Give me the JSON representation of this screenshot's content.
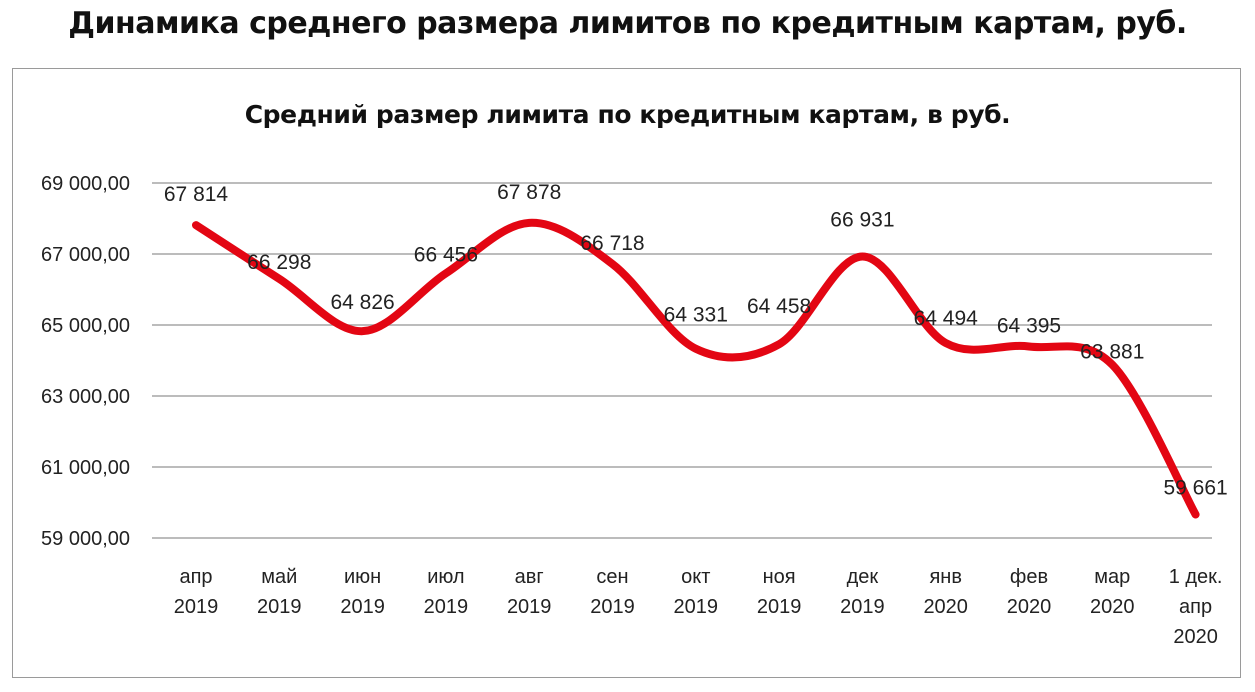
{
  "page_title": "Динамика среднего размера лимитов по кредитным картам, руб.",
  "chart_data": {
    "type": "line",
    "title": "Средний размер лимита по кредитным картам, в руб.",
    "xlabel": "",
    "ylabel": "",
    "categories": [
      [
        "апр",
        "2019"
      ],
      [
        "май",
        "2019"
      ],
      [
        "июн",
        "2019"
      ],
      [
        "июл",
        "2019"
      ],
      [
        "авг",
        "2019"
      ],
      [
        "сен",
        "2019"
      ],
      [
        "окт",
        "2019"
      ],
      [
        "ноя",
        "2019"
      ],
      [
        "дек",
        "2019"
      ],
      [
        "янв",
        "2020"
      ],
      [
        "фев",
        "2020"
      ],
      [
        "мар",
        "2020"
      ],
      [
        "1 дек.",
        "апр",
        "2020"
      ]
    ],
    "values": [
      67814,
      66298,
      64826,
      66456,
      67878,
      66718,
      64331,
      64458,
      66931,
      64494,
      64395,
      63881,
      59661
    ],
    "data_labels": [
      "67 814",
      "66 298",
      "64 826",
      "66 456",
      "67 878",
      "66 718",
      "64 331",
      "64 458",
      "66 931",
      "64 494",
      "64 395",
      "63 881",
      "59 661"
    ],
    "ylim": [
      59000,
      69000
    ],
    "yticks": [
      59000,
      61000,
      63000,
      65000,
      67000,
      69000
    ],
    "ytick_labels": [
      "59 000,00",
      "61 000,00",
      "63 000,00",
      "65 000,00",
      "67 000,00",
      "69 000,00"
    ],
    "line_style": "smooth",
    "grid": true,
    "legend": "none",
    "colors": {
      "line": "#e30613",
      "grid": "#a6a6a6",
      "text": "#222222"
    }
  }
}
